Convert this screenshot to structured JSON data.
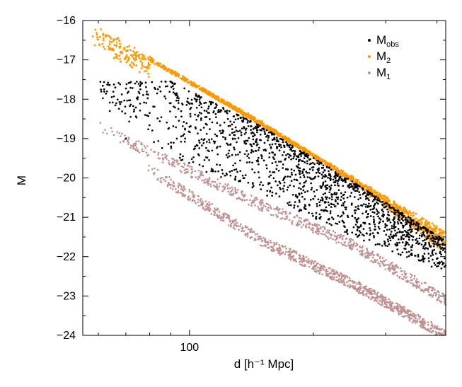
{
  "chart_data": {
    "type": "scatter",
    "title": "",
    "xlabel": "d [h⁻¹ Mpc]",
    "ylabel": "M",
    "x_scale": "log",
    "xlim": [
      55,
      420
    ],
    "ylim": [
      -16,
      -24
    ],
    "y_inverted": true,
    "x_ticks": [
      100
    ],
    "x_tick_labels": [
      "100"
    ],
    "y_ticks": [
      -16,
      -17,
      -18,
      -19,
      -20,
      -21,
      -22,
      -23,
      -24
    ],
    "y_tick_labels": [
      "−16",
      "−17",
      "−18",
      "−19",
      "−20",
      "−21",
      "−22",
      "−23",
      "−24"
    ],
    "grid": false,
    "legend_position": "top-right",
    "series": [
      {
        "name": "M_obs",
        "legend_main": "M",
        "legend_sub": "obs",
        "color": "#000000",
        "description": "Observed absolute magnitudes; scattered band between the M2 and M1 envelopes",
        "upper_envelope": [
          [
            90,
            -17.55
          ],
          [
            150,
            -18.7
          ],
          [
            250,
            -20.1
          ],
          [
            420,
            -21.6
          ]
        ],
        "lower_envelope": [
          [
            60,
            -17.9
          ],
          [
            90,
            -19.5
          ],
          [
            150,
            -20.4
          ],
          [
            250,
            -21.5
          ],
          [
            420,
            -22.4
          ]
        ],
        "sample_points": [
          [
            62,
            -17.75
          ],
          [
            66,
            -17.7
          ],
          [
            64,
            -18.3
          ],
          [
            70,
            -19.0
          ],
          [
            78,
            -18.4
          ],
          [
            85,
            -17.8
          ],
          [
            90,
            -18.1
          ],
          [
            95,
            -19.4
          ],
          [
            100,
            -18.7
          ],
          [
            110,
            -18.3
          ],
          [
            120,
            -19.8
          ],
          [
            130,
            -18.8
          ],
          [
            140,
            -19.6
          ],
          [
            150,
            -19.5
          ],
          [
            170,
            -20.0
          ],
          [
            190,
            -20.2
          ],
          [
            210,
            -20.5
          ],
          [
            240,
            -20.8
          ],
          [
            270,
            -21.0
          ],
          [
            300,
            -21.2
          ],
          [
            340,
            -21.4
          ],
          [
            380,
            -21.8
          ],
          [
            410,
            -22.3
          ]
        ]
      },
      {
        "name": "M_2",
        "legend_main": "M",
        "legend_sub": "2",
        "color": "#ff9900",
        "description": "Narrow band along the bright (upper) envelope",
        "upper_edge": [
          [
            58,
            -16.1
          ],
          [
            420,
            -21.4
          ]
        ],
        "lower_edge": [
          [
            80,
            -17.0
          ],
          [
            150,
            -18.6
          ],
          [
            250,
            -20.1
          ],
          [
            420,
            -21.9
          ]
        ]
      },
      {
        "name": "M_1",
        "legend_main": "M",
        "legend_sub": "1",
        "color": "#c09090",
        "description": "Two parallel faint bands along the lower envelope",
        "upper_band": [
          [
            60,
            -18.7
          ],
          [
            90,
            -19.6
          ],
          [
            150,
            -20.7
          ],
          [
            250,
            -21.7
          ],
          [
            420,
            -23.1
          ]
        ],
        "lower_band": [
          [
            80,
            -19.8
          ],
          [
            150,
            -21.6
          ],
          [
            250,
            -22.7
          ],
          [
            420,
            -24.0
          ]
        ]
      }
    ]
  }
}
